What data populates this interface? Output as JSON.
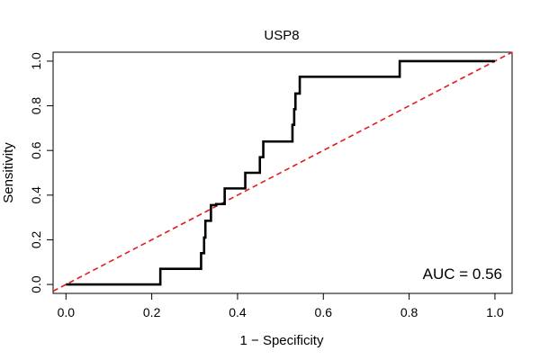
{
  "chart_data": {
    "type": "line",
    "title": "USP8",
    "xlabel": "1 − Specificity",
    "ylabel": "Sensitivity",
    "xlim": [
      -0.03,
      1.04
    ],
    "ylim": [
      -0.04,
      1.04
    ],
    "x_ticks": [
      0.0,
      0.2,
      0.4,
      0.6,
      0.8,
      1.0
    ],
    "x_tick_labels": [
      "0.0",
      "0.2",
      "0.4",
      "0.6",
      "0.8",
      "1.0"
    ],
    "y_ticks": [
      0.0,
      0.2,
      0.4,
      0.6,
      0.8,
      1.0
    ],
    "y_tick_labels": [
      "0.0",
      "0.2",
      "0.4",
      "0.6",
      "0.8",
      "1.0"
    ],
    "grid": false,
    "annotation": "AUC = 0.56",
    "series": [
      {
        "style": "step",
        "color": "#000000",
        "x": [
          0.0,
          0.22,
          0.22,
          0.315,
          0.315,
          0.322,
          0.322,
          0.325,
          0.325,
          0.338,
          0.338,
          0.35,
          0.35,
          0.37,
          0.37,
          0.418,
          0.418,
          0.452,
          0.452,
          0.46,
          0.46,
          0.528,
          0.528,
          0.532,
          0.532,
          0.535,
          0.535,
          0.545,
          0.545,
          0.778,
          0.778,
          1.0
        ],
        "y": [
          0.0,
          0.0,
          0.07,
          0.07,
          0.14,
          0.14,
          0.21,
          0.21,
          0.285,
          0.285,
          0.355,
          0.355,
          0.36,
          0.36,
          0.43,
          0.43,
          0.5,
          0.5,
          0.57,
          0.57,
          0.64,
          0.64,
          0.715,
          0.715,
          0.785,
          0.785,
          0.855,
          0.855,
          0.93,
          0.93,
          1.0,
          1.0
        ]
      },
      {
        "style": "dashed",
        "color": "#e41a1c",
        "x": [
          -0.03,
          1.04
        ],
        "y": [
          -0.03,
          1.04
        ]
      }
    ]
  }
}
